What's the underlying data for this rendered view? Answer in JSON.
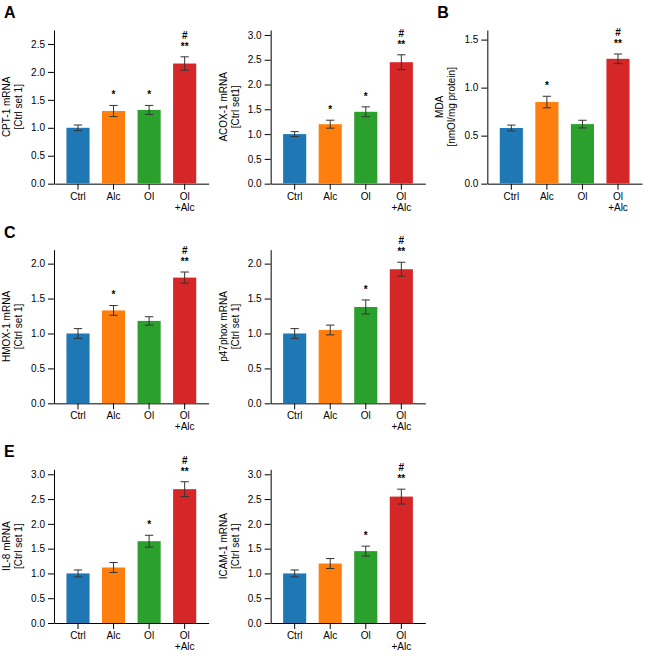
{
  "chart_data": [
    {
      "type": "bar",
      "title": "A",
      "categories": [
        "Ctrl",
        "Alc",
        "Ol",
        "Ol\n+Alc"
      ],
      "values": [
        1.0,
        1.3,
        1.32,
        2.15
      ],
      "errors": [
        0.05,
        0.1,
        0.08,
        0.12
      ],
      "y_label": "CPT-1 mRNA\n[Ctrl set 1]",
      "ylim": [
        0,
        2.75
      ],
      "yticks": [
        {
          "value": 0.0,
          "label": "0.0"
        },
        0.5,
        {
          "value": 1.0,
          "label": "1.0"
        },
        1.5,
        {
          "value": 2.0,
          "label": "2.0"
        },
        2.5
      ],
      "annotations": [
        null,
        "*",
        "*",
        "**\n#"
      ]
    },
    {
      "type": "bar",
      "categories": [
        "Ctrl",
        "Alc",
        "Ol",
        "Ol\n+Alc"
      ],
      "values": [
        1.0,
        1.2,
        1.45,
        2.45
      ],
      "errors": [
        0.05,
        0.08,
        0.1,
        0.15
      ],
      "y_label": "ACOX-1 mRNA\n[Ctrl set1]",
      "ylim": [
        0,
        3.1
      ],
      "yticks": [
        {
          "value": 0.0,
          "label": "0.0"
        },
        0.5,
        {
          "value": 1.0,
          "label": "1.0"
        },
        1.5,
        {
          "value": 2.0,
          "label": "2.0"
        },
        2.5,
        {
          "value": 3.0,
          "label": "3.0"
        }
      ],
      "annotations": [
        null,
        "*",
        "*",
        "**\n#"
      ]
    },
    {
      "type": "bar",
      "title": "B",
      "categories": [
        "Ctrl",
        "Alc",
        "Ol",
        "Ol\n+Alc"
      ],
      "values": [
        0.58,
        0.85,
        0.62,
        1.3
      ],
      "errors": [
        0.03,
        0.06,
        0.04,
        0.05
      ],
      "y_label": "MDA\n[nmOl/mg protein]",
      "ylim": [
        0,
        1.6
      ],
      "yticks": [
        {
          "value": 0.0,
          "label": "0.0"
        },
        0.5,
        {
          "value": 1.0,
          "label": "1.0"
        },
        1.5
      ],
      "annotations": [
        null,
        "*",
        null,
        "**\n#"
      ]
    },
    {
      "type": "bar",
      "title": "C",
      "categories": [
        "Ctrl",
        "Alc",
        "Ol",
        "Ol\n+Alc"
      ],
      "values": [
        1.0,
        1.33,
        1.18,
        1.8
      ],
      "errors": [
        0.07,
        0.07,
        0.06,
        0.08
      ],
      "y_label": "HMOX-1 mRNA\n[Ctrl set 1]",
      "ylim": [
        0,
        2.2
      ],
      "yticks": [
        {
          "value": 0.0,
          "label": "0.0"
        },
        0.5,
        {
          "value": 1.0,
          "label": "1.0"
        },
        1.5,
        {
          "value": 2.0,
          "label": "2.0"
        }
      ],
      "annotations": [
        null,
        "*",
        null,
        "**\n#"
      ]
    },
    {
      "type": "bar",
      "categories": [
        "Ctrl",
        "Alc",
        "Ol",
        "Ol\n+Alc"
      ],
      "values": [
        1.0,
        1.05,
        1.38,
        1.92
      ],
      "errors": [
        0.07,
        0.07,
        0.1,
        0.1
      ],
      "y_label": "p47phox mRNA\n[Ctrl set 1]",
      "ylim": [
        0,
        2.2
      ],
      "yticks": [
        {
          "value": 0.0,
          "label": "0.0"
        },
        0.5,
        {
          "value": 1.0,
          "label": "1.0"
        },
        1.5,
        {
          "value": 2.0,
          "label": "2.0"
        }
      ],
      "annotations": [
        null,
        null,
        "*",
        "**\n#"
      ]
    },
    {
      "type": "bar",
      "title": "E",
      "categories": [
        "Ctrl",
        "Alc",
        "Ol",
        "Ol\n+Alc"
      ],
      "values": [
        1.0,
        1.12,
        1.65,
        2.7
      ],
      "errors": [
        0.07,
        0.1,
        0.12,
        0.15
      ],
      "y_label": "IL-8 mRNA\n[Ctrl set 1]",
      "ylim": [
        0,
        3.1
      ],
      "yticks": [
        {
          "value": 0.0,
          "label": "0.0"
        },
        0.5,
        {
          "value": 1.0,
          "label": "1.0"
        },
        1.5,
        {
          "value": 2.0,
          "label": "2.0"
        },
        2.5,
        {
          "value": 3.0,
          "label": "3.0"
        }
      ],
      "annotations": [
        null,
        null,
        "*",
        "**\n#"
      ]
    },
    {
      "type": "bar",
      "categories": [
        "Ctrl",
        "Alc",
        "Ol",
        "Ol\n+Alc"
      ],
      "values": [
        1.0,
        1.2,
        1.45,
        2.55
      ],
      "errors": [
        0.07,
        0.1,
        0.1,
        0.15
      ],
      "y_label": "ICAM-1 mRNA\n[Ctrl set 1]",
      "ylim": [
        0,
        3.1
      ],
      "yticks": [
        {
          "value": 0.0,
          "label": "0.0"
        },
        0.5,
        {
          "value": 1.0,
          "label": "1.0"
        },
        1.5,
        {
          "value": 2.0,
          "label": "2.0"
        },
        2.5,
        {
          "value": 3.0,
          "label": "3.0"
        }
      ],
      "annotations": [
        null,
        null,
        "*",
        "**\n#"
      ]
    }
  ]
}
